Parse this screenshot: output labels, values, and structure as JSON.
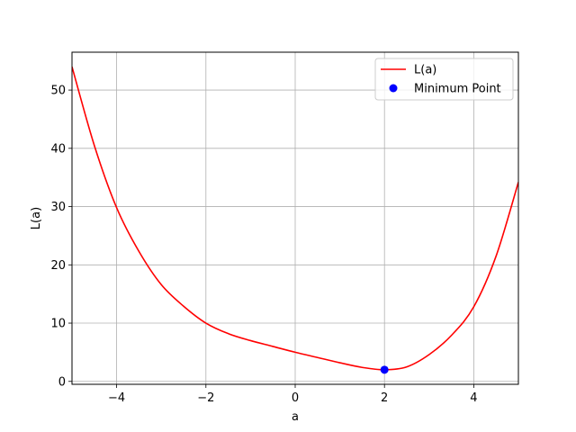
{
  "chart_data": {
    "type": "line",
    "title": "",
    "xlabel": "a",
    "ylabel": "L(a)",
    "xlim": [
      -5,
      5
    ],
    "ylim": [
      -0.5,
      56.5
    ],
    "grid": true,
    "legend_position": "top-right",
    "x_ticks": [
      -4,
      -2,
      0,
      2,
      4
    ],
    "x_tick_labels": [
      "−4",
      "−2",
      "0",
      "2",
      "4"
    ],
    "y_ticks": [
      0,
      10,
      20,
      30,
      40,
      50
    ],
    "y_tick_labels": [
      "0",
      "10",
      "20",
      "30",
      "40",
      "50"
    ],
    "series": [
      {
        "name": "L(a)",
        "kind": "line",
        "color": "#ff0000",
        "x": [
          -5,
          -4.5,
          -4,
          -3.5,
          -3,
          -2.5,
          -2,
          -1.5,
          -1,
          -0.5,
          0,
          0.5,
          1,
          1.5,
          2,
          2.5,
          3,
          3.5,
          4,
          4.5,
          5
        ],
        "y": [
          54,
          40.5,
          29.8,
          22.3,
          16.6,
          12.9,
          10,
          8.2,
          7,
          6,
          5,
          4.1,
          3.2,
          2.4,
          2,
          2.5,
          4.6,
          7.9,
          12.8,
          21.5,
          34.2
        ]
      },
      {
        "name": "Minimum Point",
        "kind": "scatter",
        "color": "#0000ff",
        "x": [
          2
        ],
        "y": [
          2
        ]
      }
    ]
  }
}
